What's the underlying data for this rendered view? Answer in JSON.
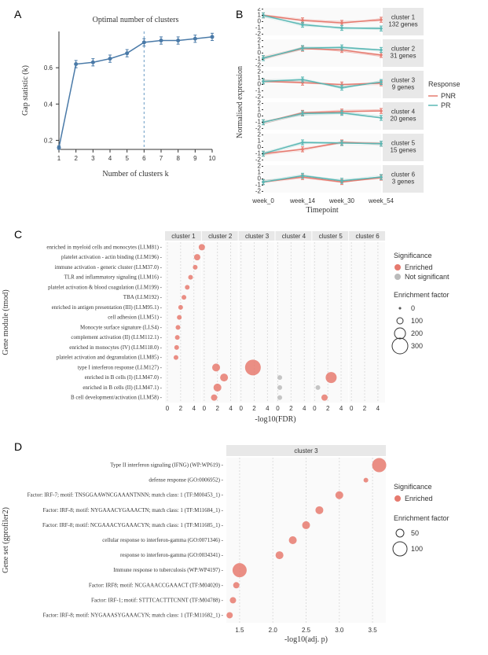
{
  "panelA": {
    "label": "A",
    "title": "Optimal number of clusters",
    "xlabel": "Number of clusters k",
    "ylabel": "Gap statistic (k)",
    "xvals": [
      1,
      2,
      3,
      4,
      5,
      6,
      7,
      8,
      9,
      10
    ],
    "yvals": [
      0.16,
      0.62,
      0.63,
      0.65,
      0.68,
      0.74,
      0.75,
      0.75,
      0.76,
      0.77
    ],
    "errs": [
      0.01,
      0.02,
      0.02,
      0.02,
      0.02,
      0.02,
      0.02,
      0.02,
      0.02,
      0.02
    ],
    "ylim": [
      0.15,
      0.8
    ],
    "yticks": [
      0.2,
      0.4,
      0.6
    ],
    "dashline_x": 6,
    "line_color": "#4a7aa8",
    "dash_color": "#6a9bc4"
  },
  "panelB": {
    "label": "B",
    "ylabel": "Normalised expression",
    "xlabel": "Timepoint",
    "timepoints": [
      "week_0",
      "week_14",
      "week_30",
      "week_54"
    ],
    "yticks": [
      -2,
      -1,
      0,
      1,
      2
    ],
    "legend_title": "Response",
    "legend_items": [
      {
        "label": "PNR",
        "color": "#e67a6f"
      },
      {
        "label": "PR",
        "color": "#5bb8b5"
      }
    ],
    "clusters": [
      {
        "name": "cluster 1",
        "genes": "132 genes",
        "pnr": [
          1.0,
          0.2,
          -0.2,
          0.3
        ],
        "pr": [
          1.0,
          -0.5,
          -1.0,
          -1.1
        ]
      },
      {
        "name": "cluster 2",
        "genes": "31 genes",
        "pnr": [
          -0.8,
          0.7,
          0.5,
          -0.3
        ],
        "pr": [
          -0.8,
          0.8,
          0.9,
          0.5
        ]
      },
      {
        "name": "cluster 3",
        "genes": "9 genes",
        "pnr": [
          0.5,
          0.3,
          0.0,
          0.2
        ],
        "pr": [
          0.5,
          0.8,
          -0.5,
          0.4
        ]
      },
      {
        "name": "cluster 4",
        "genes": "20 genes",
        "pnr": [
          -1.0,
          0.5,
          0.7,
          0.8
        ],
        "pr": [
          -1.0,
          0.4,
          0.5,
          -0.3
        ]
      },
      {
        "name": "cluster 5",
        "genes": "15 genes",
        "pnr": [
          -1.0,
          -0.3,
          0.8,
          0.6
        ],
        "pr": [
          -1.0,
          0.8,
          0.7,
          0.6
        ]
      },
      {
        "name": "cluster 6",
        "genes": "3 genes",
        "pnr": [
          -0.5,
          0.3,
          -0.5,
          0.2
        ],
        "pr": [
          -0.5,
          0.5,
          -0.3,
          0.3
        ]
      }
    ]
  },
  "panelC": {
    "label": "C",
    "ylabel_text": "Gene module (tmod)",
    "xlabel": "-log10(FDR)",
    "xticks": [
      0,
      2,
      4
    ],
    "clusters": [
      "cluster 1",
      "cluster 2",
      "cluster 3",
      "cluster 4",
      "cluster 5",
      "cluster 6"
    ],
    "legend_sig": {
      "title": "Significance",
      "items": [
        {
          "label": "Enriched",
          "color": "#e67a6f"
        },
        {
          "label": "Not significant",
          "color": "#bbbbbb"
        }
      ]
    },
    "legend_size": {
      "title": "Enrichment factor",
      "values": [
        0,
        100,
        200,
        300
      ],
      "sizes": [
        1,
        4,
        7,
        10
      ]
    },
    "terms": [
      "enriched in myeloid cells and monocytes (LI.M81)",
      "platelet activation - actin binding (LI.M196)",
      "immune activation - generic cluster (LI.M37.0)",
      "TLR and inflammatory signaling (LI.M16)",
      "platelet activation & blood coagulation (LI.M199)",
      "TBA (LI.M192)",
      "enriched in antigen presentation (III) (LI.M95.1)",
      "cell adhesion (LI.M51)",
      "Monocyte surface signature (LI.S4)",
      "complement activation (II) (LI.M112.1)",
      "enriched in monocytes (IV) (LI.M118.0)",
      "platelet activation and degranulation (LI.M85)",
      "type I interferon response (LI.M127)",
      "enriched in B cells (I) (LI.M47.0)",
      "enriched in B cells (II) (LI.M47.1)",
      "B cell development/activation (LI.M58)"
    ],
    "points": [
      {
        "term": 0,
        "cluster": 0,
        "x": 5.2,
        "size": 4,
        "sig": true
      },
      {
        "term": 1,
        "cluster": 0,
        "x": 4.5,
        "size": 4,
        "sig": true
      },
      {
        "term": 2,
        "cluster": 0,
        "x": 4.2,
        "size": 3,
        "sig": true
      },
      {
        "term": 3,
        "cluster": 0,
        "x": 3.5,
        "size": 3,
        "sig": true
      },
      {
        "term": 4,
        "cluster": 0,
        "x": 3.0,
        "size": 3,
        "sig": true
      },
      {
        "term": 5,
        "cluster": 0,
        "x": 2.5,
        "size": 3,
        "sig": true
      },
      {
        "term": 6,
        "cluster": 0,
        "x": 2.0,
        "size": 3,
        "sig": true
      },
      {
        "term": 7,
        "cluster": 0,
        "x": 1.8,
        "size": 3,
        "sig": true
      },
      {
        "term": 8,
        "cluster": 0,
        "x": 1.6,
        "size": 3,
        "sig": true
      },
      {
        "term": 9,
        "cluster": 0,
        "x": 1.5,
        "size": 3,
        "sig": true
      },
      {
        "term": 10,
        "cluster": 0,
        "x": 1.4,
        "size": 3,
        "sig": true
      },
      {
        "term": 11,
        "cluster": 0,
        "x": 1.3,
        "size": 3,
        "sig": true
      },
      {
        "term": 12,
        "cluster": 1,
        "x": 1.8,
        "size": 5,
        "sig": true
      },
      {
        "term": 13,
        "cluster": 1,
        "x": 3.0,
        "size": 5,
        "sig": true
      },
      {
        "term": 14,
        "cluster": 1,
        "x": 2.0,
        "size": 5,
        "sig": true
      },
      {
        "term": 15,
        "cluster": 1,
        "x": 1.5,
        "size": 4,
        "sig": true
      },
      {
        "term": 12,
        "cluster": 2,
        "x": 1.8,
        "size": 10,
        "sig": true
      },
      {
        "term": 13,
        "cluster": 3,
        "x": 0.3,
        "size": 3,
        "sig": false
      },
      {
        "term": 14,
        "cluster": 3,
        "x": 0.3,
        "size": 3,
        "sig": false
      },
      {
        "term": 15,
        "cluster": 3,
        "x": 0.3,
        "size": 3,
        "sig": false
      },
      {
        "term": 13,
        "cluster": 4,
        "x": 2.5,
        "size": 7,
        "sig": true
      },
      {
        "term": 14,
        "cluster": 4,
        "x": 0.5,
        "size": 3,
        "sig": false
      },
      {
        "term": 15,
        "cluster": 4,
        "x": 1.5,
        "size": 4,
        "sig": true
      }
    ]
  },
  "panelD": {
    "label": "D",
    "ylabel_text": "Gene set (gprofiler2)",
    "xlabel": "-log10(adj. p)",
    "xticks": [
      1.5,
      2.0,
      2.5,
      3.0,
      3.5
    ],
    "facet": "cluster 3",
    "legend_sig": {
      "title": "Significance",
      "items": [
        {
          "label": "Enriched",
          "color": "#e67a6f"
        }
      ]
    },
    "legend_size": {
      "title": "Enrichment factor",
      "values": [
        50,
        100
      ],
      "sizes": [
        5,
        9
      ]
    },
    "terms": [
      "Type II interferon signaling (IFNG) (WP:WP619)",
      "defense response (GO:0006952)",
      "Factor: IRF-7; motif: TNSGGAAWNCGAAANTNNN; match class: 1 (TF:M00453_1)",
      "Factor: IRF-8; motif: NYGAAACYGAAACTN; match class: 1 (TF:M11684_1)",
      "Factor: IRF-8; motif: NCGAAACYGAAACYN; match class: 1 (TF:M11685_1)",
      "cellular response to interferon-gamma (GO:0071346)",
      "response to interferon-gamma (GO:0034341)",
      "Immune response to tuberculosis (WP:WP4197)",
      "Factor: IRF8; motif: NCGAAACCGAAACT (TF:M04020)",
      "Factor: IRF-1; motif: STTTCACTTTCNNT (TF:M04788)",
      "Factor: IRF-8; motif: NYGAAASYGAAACYN; match class: 1 (TF:M11682_1)"
    ],
    "points": [
      {
        "term": 0,
        "x": 3.6,
        "size": 9
      },
      {
        "term": 1,
        "x": 3.4,
        "size": 3
      },
      {
        "term": 2,
        "x": 3.0,
        "size": 5
      },
      {
        "term": 3,
        "x": 2.7,
        "size": 5
      },
      {
        "term": 4,
        "x": 2.5,
        "size": 5
      },
      {
        "term": 5,
        "x": 2.3,
        "size": 5
      },
      {
        "term": 6,
        "x": 2.1,
        "size": 5
      },
      {
        "term": 7,
        "x": 1.5,
        "size": 9
      },
      {
        "term": 8,
        "x": 1.45,
        "size": 4
      },
      {
        "term": 9,
        "x": 1.4,
        "size": 4
      },
      {
        "term": 10,
        "x": 1.35,
        "size": 4
      }
    ]
  },
  "colors": {
    "enriched": "#e67a6f",
    "notsig": "#bbbbbb",
    "grid": "#dddddd",
    "facet_bg": "#e8e8e8"
  }
}
